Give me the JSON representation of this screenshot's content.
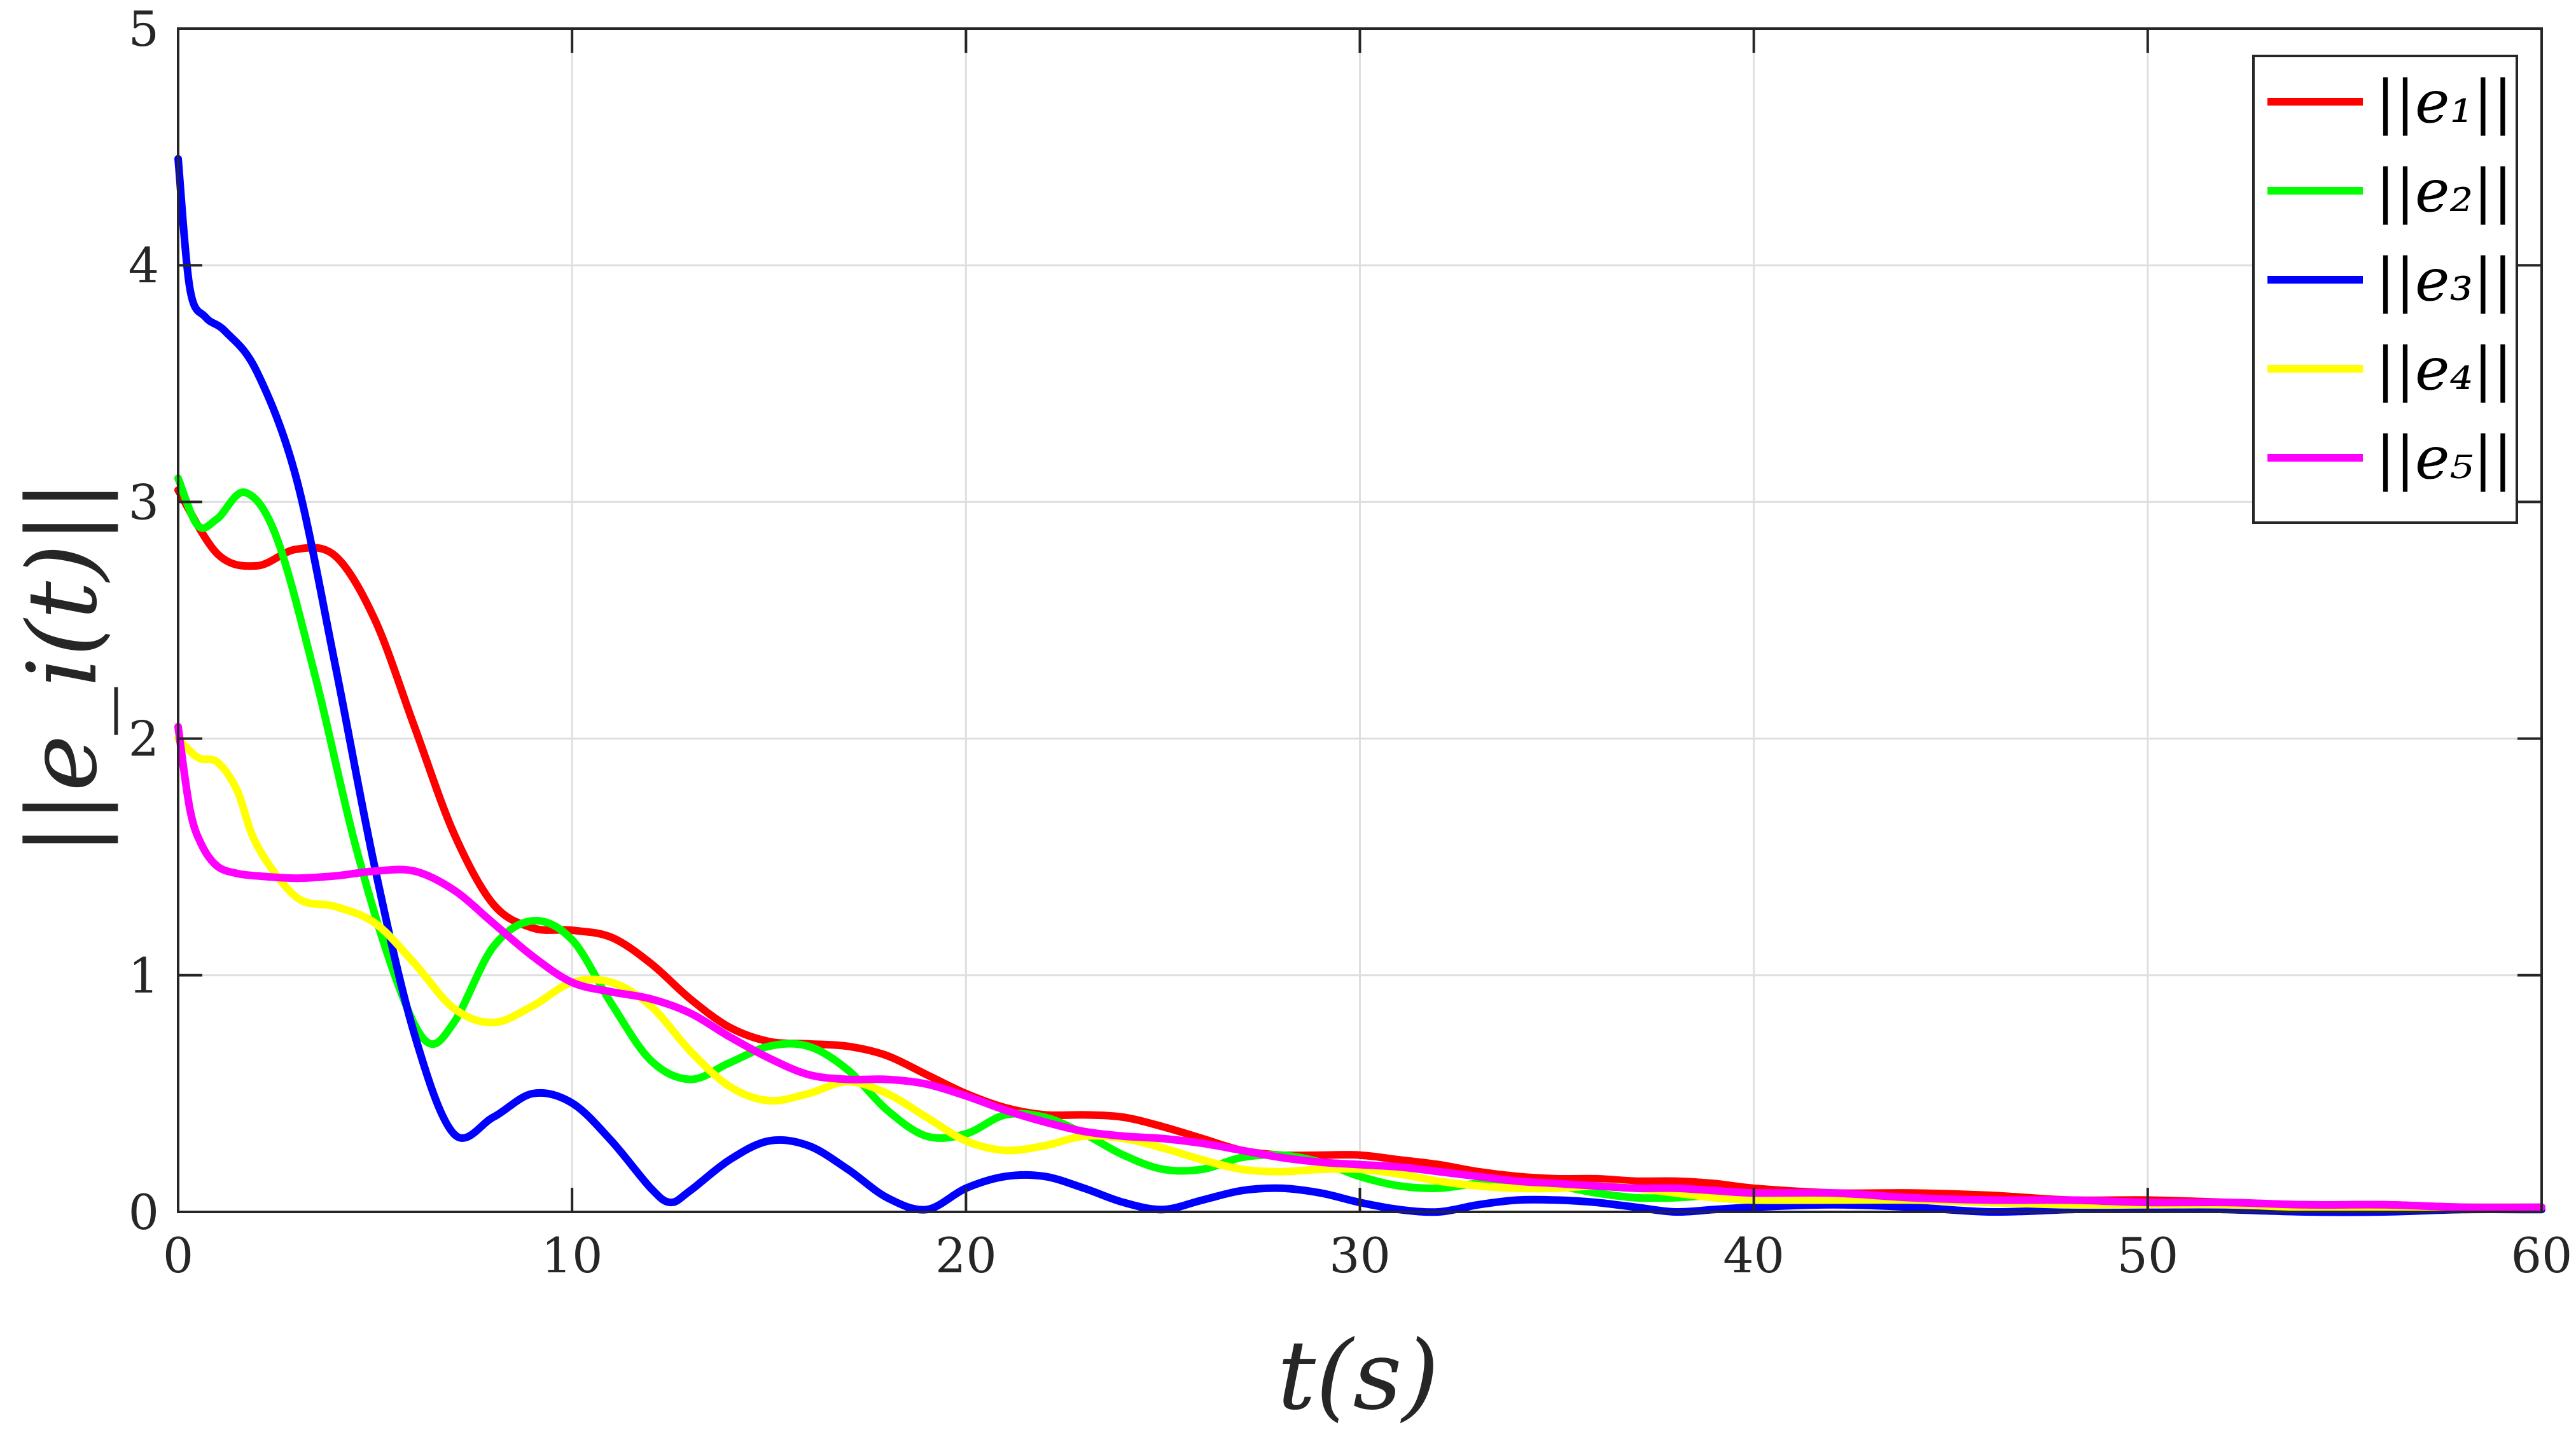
{
  "chart_data": {
    "type": "line",
    "xlabel": "t(s)",
    "ylabel": "||e_i(t)||",
    "xlim": [
      0,
      60
    ],
    "ylim": [
      0,
      5
    ],
    "xticks": [
      0,
      10,
      20,
      30,
      40,
      50,
      60
    ],
    "yticks": [
      0,
      1,
      2,
      3,
      4,
      5
    ],
    "xtick_labels": [
      "0",
      "10",
      "20",
      "30",
      "40",
      "50",
      "60"
    ],
    "ytick_labels": [
      "0",
      "1",
      "2",
      "3",
      "4",
      "5"
    ],
    "grid": true,
    "legend_position": "top-right",
    "series": [
      {
        "name": "||e₁||",
        "color": "#ff0000",
        "x": [
          0,
          1,
          2,
          3,
          4,
          5,
          6,
          7,
          8,
          9,
          10,
          11,
          12,
          13,
          14,
          15,
          16,
          17,
          18,
          19,
          20,
          21,
          22,
          23,
          24,
          25,
          26,
          27,
          28,
          29,
          30,
          31,
          32,
          33,
          34,
          35,
          36,
          37,
          38,
          39,
          40,
          42,
          44,
          46,
          48,
          50,
          52,
          54,
          56,
          58,
          60
        ],
        "y": [
          3.05,
          2.78,
          2.73,
          2.8,
          2.77,
          2.5,
          2.05,
          1.6,
          1.3,
          1.2,
          1.19,
          1.16,
          1.05,
          0.9,
          0.78,
          0.72,
          0.71,
          0.7,
          0.66,
          0.58,
          0.5,
          0.44,
          0.41,
          0.41,
          0.4,
          0.36,
          0.31,
          0.26,
          0.24,
          0.24,
          0.24,
          0.22,
          0.2,
          0.17,
          0.15,
          0.14,
          0.14,
          0.13,
          0.13,
          0.12,
          0.1,
          0.08,
          0.08,
          0.07,
          0.05,
          0.05,
          0.04,
          0.03,
          0.03,
          0.02,
          0.02
        ]
      },
      {
        "name": "||e₂||",
        "color": "#00ff00",
        "x": [
          0,
          0.5,
          1,
          1.7,
          2.5,
          3.5,
          4.5,
          5.5,
          6.3,
          7,
          8,
          9,
          10,
          11,
          12,
          13,
          14,
          15,
          16,
          17,
          18,
          19,
          20,
          21,
          22,
          23,
          24,
          25,
          26,
          27,
          28,
          29,
          30,
          31,
          32,
          33,
          34,
          35,
          36,
          37,
          38,
          39,
          40,
          42,
          44,
          46,
          48,
          50,
          52,
          54,
          56,
          58,
          60
        ],
        "y": [
          3.1,
          2.9,
          2.93,
          3.04,
          2.85,
          2.25,
          1.55,
          1.0,
          0.72,
          0.8,
          1.12,
          1.23,
          1.15,
          0.88,
          0.64,
          0.56,
          0.63,
          0.7,
          0.7,
          0.6,
          0.43,
          0.32,
          0.33,
          0.41,
          0.4,
          0.33,
          0.24,
          0.18,
          0.18,
          0.23,
          0.24,
          0.21,
          0.15,
          0.11,
          0.1,
          0.12,
          0.12,
          0.11,
          0.08,
          0.06,
          0.06,
          0.07,
          0.07,
          0.07,
          0.06,
          0.04,
          0.04,
          0.04,
          0.03,
          0.03,
          0.02,
          0.02,
          0.02
        ]
      },
      {
        "name": "||e₃||",
        "color": "#0000ff",
        "x": [
          0,
          0.3,
          0.7,
          1.2,
          2,
          3,
          4,
          5,
          6,
          7,
          8,
          9,
          10,
          11,
          12,
          12.5,
          13,
          14,
          15,
          16,
          17,
          18,
          19,
          20,
          21,
          22,
          23,
          24,
          25,
          26,
          27,
          28,
          29,
          30,
          31,
          32,
          33,
          34,
          35,
          36,
          37,
          38,
          39,
          40,
          42,
          44,
          46,
          48,
          50,
          52,
          54,
          56,
          58,
          60
        ],
        "y": [
          4.45,
          3.9,
          3.78,
          3.72,
          3.55,
          3.1,
          2.3,
          1.45,
          0.75,
          0.33,
          0.4,
          0.5,
          0.46,
          0.3,
          0.1,
          0.04,
          0.09,
          0.22,
          0.3,
          0.28,
          0.18,
          0.06,
          0.01,
          0.1,
          0.15,
          0.15,
          0.1,
          0.04,
          0.01,
          0.05,
          0.09,
          0.1,
          0.08,
          0.04,
          0.01,
          0.0,
          0.03,
          0.05,
          0.05,
          0.04,
          0.02,
          0.0,
          0.01,
          0.02,
          0.03,
          0.02,
          0.0,
          0.01,
          0.02,
          0.01,
          0.0,
          0.0,
          0.01,
          0.01
        ]
      },
      {
        "name": "||e₄||",
        "color": "#ffff00",
        "x": [
          0,
          0.5,
          1,
          1.5,
          2,
          3,
          4,
          5,
          6,
          7,
          8,
          9,
          10,
          11,
          12,
          13,
          14,
          15,
          16,
          17,
          18,
          19,
          20,
          21,
          22,
          23,
          24,
          25,
          26,
          27,
          28,
          29,
          30,
          31,
          32,
          33,
          34,
          35,
          36,
          37,
          38,
          39,
          40,
          42,
          44,
          46,
          48,
          50,
          52,
          54,
          56,
          58,
          60
        ],
        "y": [
          2.0,
          1.92,
          1.9,
          1.78,
          1.55,
          1.33,
          1.29,
          1.22,
          1.05,
          0.86,
          0.8,
          0.87,
          0.97,
          0.97,
          0.87,
          0.68,
          0.53,
          0.47,
          0.5,
          0.55,
          0.5,
          0.4,
          0.3,
          0.26,
          0.28,
          0.32,
          0.31,
          0.27,
          0.22,
          0.18,
          0.17,
          0.18,
          0.18,
          0.16,
          0.13,
          0.11,
          0.1,
          0.1,
          0.11,
          0.1,
          0.08,
          0.06,
          0.05,
          0.05,
          0.05,
          0.04,
          0.03,
          0.03,
          0.03,
          0.02,
          0.02,
          0.02,
          0.02
        ]
      },
      {
        "name": "||e₅||",
        "color": "#ff00ff",
        "x": [
          0,
          0.3,
          0.6,
          1,
          1.5,
          2,
          3,
          4,
          5,
          6,
          7,
          8,
          9,
          10,
          11,
          12,
          13,
          14,
          15,
          16,
          17,
          18,
          19,
          20,
          21,
          22,
          23,
          24,
          25,
          26,
          27,
          28,
          29,
          30,
          31,
          32,
          33,
          34,
          35,
          36,
          37,
          38,
          39,
          40,
          42,
          44,
          46,
          48,
          50,
          52,
          54,
          56,
          58,
          60
        ],
        "y": [
          2.05,
          1.7,
          1.55,
          1.46,
          1.43,
          1.42,
          1.41,
          1.42,
          1.44,
          1.44,
          1.36,
          1.22,
          1.08,
          0.97,
          0.93,
          0.9,
          0.84,
          0.74,
          0.65,
          0.58,
          0.56,
          0.56,
          0.54,
          0.49,
          0.43,
          0.38,
          0.34,
          0.32,
          0.31,
          0.29,
          0.26,
          0.23,
          0.21,
          0.2,
          0.19,
          0.17,
          0.15,
          0.13,
          0.12,
          0.11,
          0.1,
          0.1,
          0.09,
          0.08,
          0.08,
          0.06,
          0.05,
          0.05,
          0.04,
          0.04,
          0.03,
          0.03,
          0.02,
          0.02
        ]
      }
    ]
  }
}
